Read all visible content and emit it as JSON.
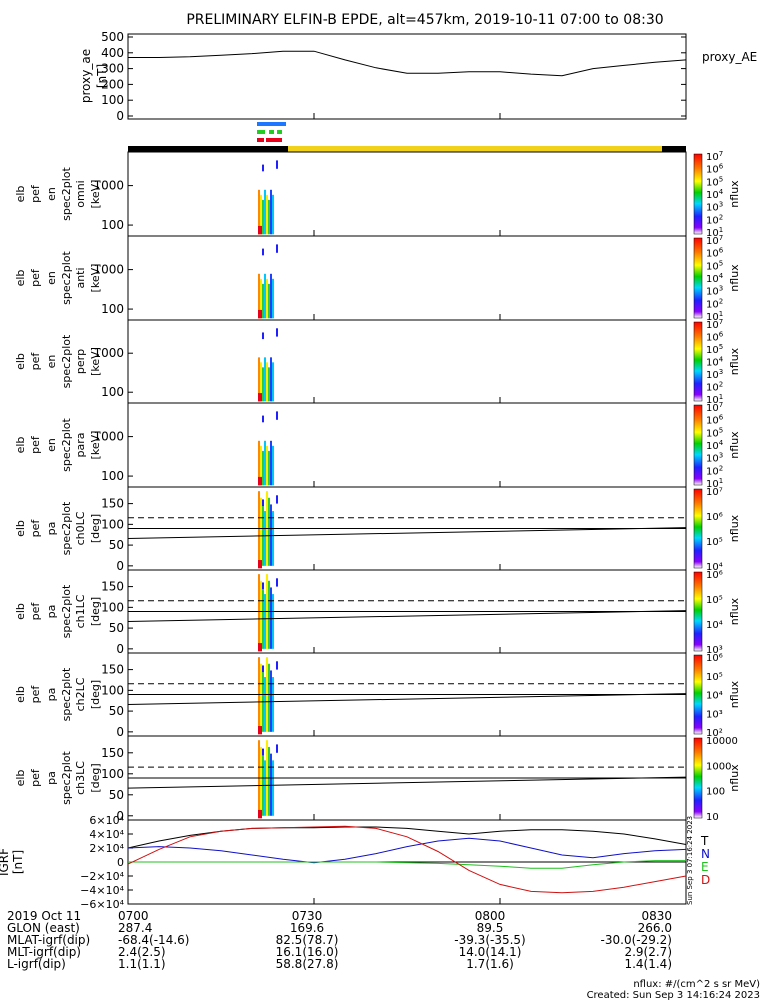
{
  "title": "PRELIMINARY ELFIN-B EPDE, alt=457km, 2019-10-11 07:00 to 08:30",
  "colors": {
    "black": "#000000",
    "bar_yellow": "#f2d11a",
    "bar_blue": "#1e78ff",
    "bar_green": "#22cc22",
    "bar_red": "#e8001a",
    "comp_T": "#000000",
    "comp_N": "#1010c8",
    "comp_E": "#20c020",
    "comp_D": "#d01010"
  },
  "time_axis": {
    "start": "07:00",
    "end": "08:30",
    "ticks": [
      "0700",
      "0730",
      "0800",
      "0830"
    ]
  },
  "chart_data": [
    {
      "type": "line",
      "panel": "proxy_ae",
      "ylabel": [
        "proxy_ae",
        "[nT]"
      ],
      "right_label": "proxy_AE",
      "ylim": [
        0,
        500
      ],
      "yticks": [
        "0",
        "100",
        "200",
        "300",
        "400",
        "500"
      ],
      "x": [
        "07:00",
        "07:05",
        "07:10",
        "07:15",
        "07:20",
        "07:25",
        "07:30",
        "07:35",
        "07:40",
        "07:45",
        "07:50",
        "07:55",
        "08:00",
        "08:05",
        "08:10",
        "08:15",
        "08:20",
        "08:25",
        "08:30"
      ],
      "values": [
        370,
        370,
        375,
        385,
        395,
        410,
        410,
        355,
        305,
        270,
        270,
        280,
        280,
        265,
        255,
        300,
        320,
        340,
        355
      ]
    },
    {
      "type": "heatmap",
      "panel": "spec2plot omni",
      "ylabel": [
        "elb",
        "pef",
        "en",
        "spec2plot",
        "omni",
        "[keV]"
      ],
      "yticks": [
        "100",
        "1000"
      ],
      "zlabel": "nflux",
      "ztick_exponents": [
        "1",
        "2",
        "3",
        "4",
        "5",
        "6",
        "7"
      ]
    },
    {
      "type": "heatmap",
      "panel": "spec2plot anti",
      "ylabel": [
        "elb",
        "pef",
        "en",
        "spec2plot",
        "anti",
        "[keV]"
      ],
      "yticks": [
        "100",
        "1000"
      ],
      "zlabel": "nflux",
      "ztick_exponents": [
        "1",
        "2",
        "3",
        "4",
        "5",
        "6",
        "7"
      ]
    },
    {
      "type": "heatmap",
      "panel": "spec2plot perp",
      "ylabel": [
        "elb",
        "pef",
        "en",
        "spec2plot",
        "perp",
        "[keV]"
      ],
      "yticks": [
        "100",
        "1000"
      ],
      "zlabel": "nflux",
      "ztick_exponents": [
        "1",
        "2",
        "3",
        "4",
        "5",
        "6",
        "7"
      ]
    },
    {
      "type": "heatmap",
      "panel": "spec2plot para",
      "ylabel": [
        "elb",
        "pef",
        "en",
        "spec2plot",
        "para",
        "[keV]"
      ],
      "yticks": [
        "100",
        "1000"
      ],
      "zlabel": "nflux",
      "ztick_exponents": [
        "1",
        "2",
        "3",
        "4",
        "5",
        "6",
        "7"
      ]
    },
    {
      "type": "heatmap",
      "panel": "spec2plot ch0LC",
      "ylabel": [
        "elb",
        "pef",
        "pa",
        "spec2plot",
        "ch0LC",
        "[deg]"
      ],
      "yticks": [
        "0",
        "50",
        "100",
        "150"
      ],
      "zlabel": "nflux",
      "zticks": [
        "10⁴",
        "10⁵",
        "10⁶",
        "10⁷"
      ]
    },
    {
      "type": "heatmap",
      "panel": "spec2plot ch1LC",
      "ylabel": [
        "elb",
        "pef",
        "pa",
        "spec2plot",
        "ch1LC",
        "[deg]"
      ],
      "yticks": [
        "0",
        "50",
        "100",
        "150"
      ],
      "zlabel": "nflux",
      "zticks": [
        "10³",
        "10⁴",
        "10⁵",
        "10⁶"
      ]
    },
    {
      "type": "heatmap",
      "panel": "spec2plot ch2LC",
      "ylabel": [
        "elb",
        "pef",
        "pa",
        "spec2plot",
        "ch2LC",
        "[deg]"
      ],
      "yticks": [
        "0",
        "50",
        "100",
        "150"
      ],
      "zlabel": "nflux",
      "zticks": [
        "10²",
        "10³",
        "10⁴",
        "10⁵",
        "10⁶"
      ]
    },
    {
      "type": "heatmap",
      "panel": "spec2plot ch3LC",
      "ylabel": [
        "elb",
        "pef",
        "pa",
        "spec2plot",
        "ch3LC",
        "[deg]"
      ],
      "yticks": [
        "0",
        "50",
        "100",
        "150"
      ],
      "zlabel": "nflux",
      "zticks": [
        "10",
        "100",
        "1000",
        "10000"
      ]
    },
    {
      "type": "line",
      "panel": "IGRF",
      "ylabel": [
        "IGRF",
        "[nT]"
      ],
      "ylim": [
        -60000,
        60000
      ],
      "yticks": [
        "−6×10⁴",
        "−4×10⁴",
        "−2×10⁴",
        "0",
        "2×10⁴",
        "4×10⁴",
        "6×10⁴"
      ],
      "x": [
        "07:00",
        "07:05",
        "07:10",
        "07:15",
        "07:20",
        "07:25",
        "07:30",
        "07:35",
        "07:40",
        "07:45",
        "07:50",
        "07:55",
        "08:00",
        "08:05",
        "08:10",
        "08:15",
        "08:20",
        "08:25",
        "08:30"
      ],
      "series": [
        {
          "name": "T",
          "values": [
            20000,
            30000,
            38000,
            44000,
            48000,
            49000,
            49000,
            50000,
            50000,
            48000,
            44000,
            40000,
            44000,
            46000,
            46000,
            44000,
            40000,
            33000,
            25000
          ]
        },
        {
          "name": "N",
          "values": [
            20000,
            22000,
            20000,
            16000,
            10000,
            4000,
            -1000,
            4000,
            12000,
            22000,
            30000,
            34000,
            30000,
            20000,
            10000,
            6000,
            12000,
            16000,
            18000
          ]
        },
        {
          "name": "E",
          "values": [
            0,
            0,
            0,
            0,
            0,
            0,
            0,
            0,
            0,
            -1000,
            -2000,
            -4000,
            -6000,
            -9000,
            -9000,
            -4000,
            0,
            2000,
            2000
          ]
        },
        {
          "name": "D",
          "values": [
            -3000,
            18000,
            36000,
            44000,
            48000,
            49000,
            50000,
            51000,
            48000,
            36000,
            15000,
            -12000,
            -32000,
            -42000,
            -44000,
            -42000,
            -36000,
            -28000,
            -20000
          ]
        }
      ],
      "side_text": "Sun Sep  3 07:16:24 2023"
    }
  ],
  "ephemeris": {
    "rows": [
      {
        "label": "2019 Oct 11",
        "values": [
          "0700",
          "0730",
          "0800",
          "0830"
        ]
      },
      {
        "label": "GLON (east)",
        "values": [
          "287.4",
          "169.6",
          "89.5",
          "266.0"
        ]
      },
      {
        "label": "MLAT-igrf(dip)",
        "values": [
          "-68.4(-14.6)",
          "82.5(78.7)",
          "-39.3(-35.5)",
          "-30.0(-29.2)"
        ]
      },
      {
        "label": "MLT-igrf(dip)",
        "values": [
          "2.4(2.5)",
          "16.1(16.0)",
          "14.0(14.1)",
          "2.9(2.7)"
        ]
      },
      {
        "label": "L-igrf(dip)",
        "values": [
          "1.1(1.1)",
          "58.8(27.8)",
          "1.7(1.6)",
          "1.4(1.4)"
        ]
      }
    ]
  },
  "footer": {
    "units": "nflux: #/(cm^2 s sr MeV)",
    "created": "Created: Sun Sep  3 14:16:24 2023"
  }
}
